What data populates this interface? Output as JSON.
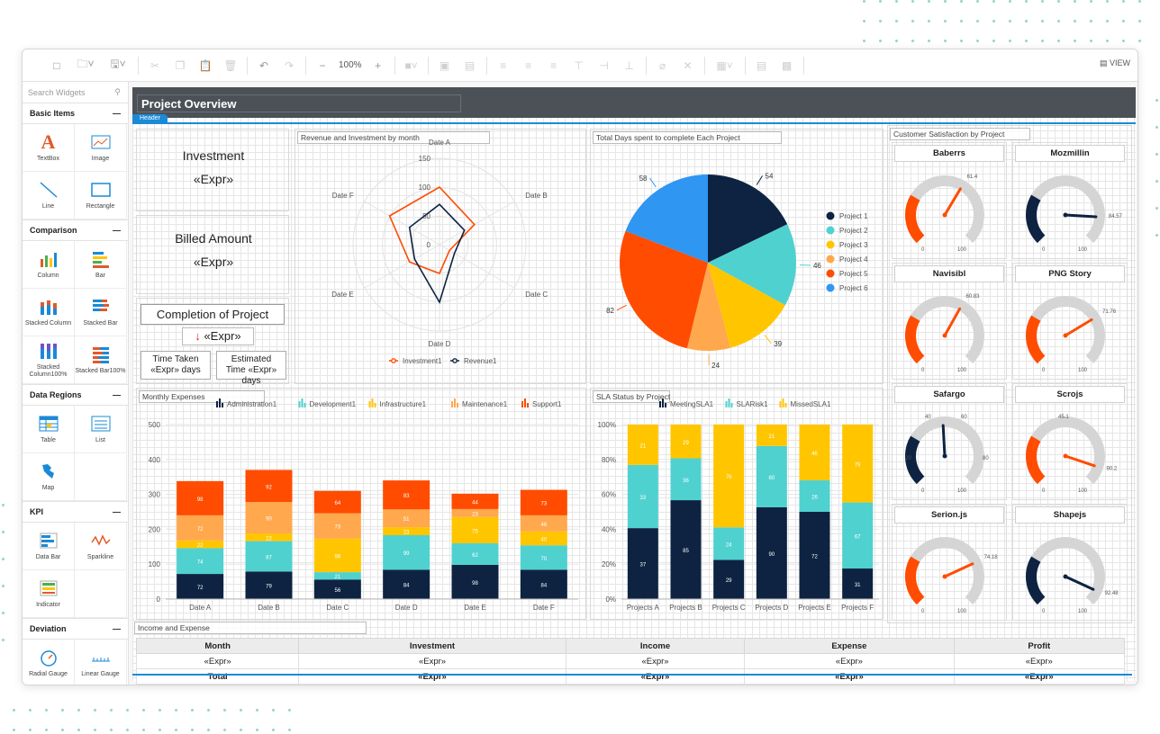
{
  "toolbar": {
    "zoom": "100%",
    "view_label": "VIEW"
  },
  "sidebar": {
    "search_placeholder": "Search Widgets",
    "categories": [
      {
        "name": "Basic Items",
        "items": [
          "TextBox",
          "Image",
          "Line",
          "Rectangle"
        ]
      },
      {
        "name": "Comparison",
        "items": [
          "Column",
          "Bar",
          "Stacked Column",
          "Stacked Bar",
          "Stacked Column100%",
          "Stacked Bar100%"
        ]
      },
      {
        "name": "Data Regions",
        "items": [
          "Table",
          "List",
          "Map"
        ]
      },
      {
        "name": "KPI",
        "items": [
          "Data Bar",
          "Sparkline",
          "Indicator"
        ]
      },
      {
        "name": "Deviation",
        "items": [
          "Radial Gauge",
          "Linear Gauge"
        ]
      }
    ]
  },
  "report": {
    "title": "Project Overview",
    "header_tag": "Header",
    "investment_label": "Investment",
    "investment_value": "«Expr»",
    "billed_label": "Billed Amount",
    "billed_value": "«Expr»",
    "completion_label": "Completion of Project",
    "completion_value": "«Expr»",
    "time_taken": "Time Taken «Expr» days",
    "estimated_time": "Estimated Time «Expr» days"
  },
  "colors": {
    "navy": "#0d2341",
    "teal": "#4fd1d0",
    "yellow": "#ffc600",
    "orange": "#ffa84d",
    "red": "#ff4c00",
    "blue": "#2f96f2"
  },
  "radar": {
    "title": "Revenue and Investment by month",
    "axes": [
      "Date A",
      "Date B",
      "Date C",
      "Date D",
      "Date E",
      "Date F"
    ],
    "ticks": [
      "150",
      "100",
      "50",
      "0"
    ],
    "series": [
      {
        "name": "Investment1",
        "values": [
          100,
          70,
          20,
          50,
          60,
          100
        ]
      },
      {
        "name": "Revenue1",
        "values": [
          70,
          50,
          30,
          100,
          50,
          60
        ]
      }
    ]
  },
  "pie": {
    "title": "Total Days spent to complete Each Project",
    "labels": [
      "Project 1",
      "Project 2",
      "Project 3",
      "Project 4",
      "Project 5",
      "Project 6"
    ],
    "values": [
      54,
      46,
      39,
      24,
      82,
      58
    ]
  },
  "expenses": {
    "title": "Monthly Expenses",
    "categories": [
      "Date A",
      "Date B",
      "Date C",
      "Date D",
      "Date E",
      "Date F"
    ],
    "yticks": [
      "0",
      "100",
      "200",
      "300",
      "400",
      "500"
    ],
    "series": [
      {
        "name": "Administration1",
        "values": [
          72,
          79,
          56,
          84,
          98,
          84
        ]
      },
      {
        "name": "Development1",
        "values": [
          74,
          87,
          21,
          99,
          62,
          70
        ]
      },
      {
        "name": "Infrastructure1",
        "values": [
          22,
          22,
          96,
          23,
          75,
          40
        ]
      },
      {
        "name": "Maintenance1",
        "values": [
          72,
          90,
          73,
          51,
          23,
          46
        ]
      },
      {
        "name": "Support1",
        "values": [
          98,
          92,
          64,
          83,
          44,
          73
        ]
      }
    ]
  },
  "sla": {
    "title": "SLA Status by Project",
    "categories": [
      "Projects A",
      "Projects B",
      "Projects C",
      "Projects D",
      "Projects E",
      "Projects F"
    ],
    "yticks": [
      "0%",
      "20%",
      "40%",
      "60%",
      "80%",
      "100%"
    ],
    "series": [
      {
        "name": "MeetingSLA1",
        "values": [
          37,
          85,
          29,
          90,
          72,
          31
        ]
      },
      {
        "name": "SLARisk1",
        "values": [
          33,
          36,
          24,
          60,
          26,
          67
        ]
      },
      {
        "name": "MissedSLA1",
        "values": [
          21,
          29,
          76,
          21,
          46,
          79
        ]
      }
    ]
  },
  "satisfaction": {
    "title": "Customer Satisfaction by Project",
    "gauges": [
      {
        "name": "Baberrs",
        "value": 61.4,
        "label": "61.4",
        "style": "orange"
      },
      {
        "name": "Mozmillin",
        "value": 84.57,
        "label": "84.57",
        "style": "navy"
      },
      {
        "name": "Navisibl",
        "value": 60.83,
        "label": "60.83",
        "style": "orange"
      },
      {
        "name": "PNG Story",
        "value": 71.76,
        "label": "71.76",
        "style": "orange"
      },
      {
        "name": "Safargo",
        "value": 48.9,
        "label": "",
        "style": "navy",
        "extra": [
          "20",
          "40",
          "60",
          "80"
        ]
      },
      {
        "name": "Scrojs",
        "value": 90.2,
        "label": "90.2",
        "style": "orange",
        "extra2": "45.1"
      },
      {
        "name": "Serion.js",
        "value": 74.18,
        "label": "74.18",
        "style": "orange"
      },
      {
        "name": "Shapejs",
        "value": 92.48,
        "label": "92.48",
        "style": "navy"
      }
    ],
    "min_label": "0",
    "max_label": "100"
  },
  "income_table": {
    "title": "Income and Expense",
    "headers": [
      "Month",
      "Investment",
      "Income",
      "Expense",
      "Profit"
    ],
    "row": [
      "«Expr»",
      "«Expr»",
      "«Expr»",
      "«Expr»",
      "«Expr»"
    ],
    "total": [
      "Total",
      "«Expr»",
      "«Expr»",
      "«Expr»",
      "«Expr»"
    ]
  }
}
